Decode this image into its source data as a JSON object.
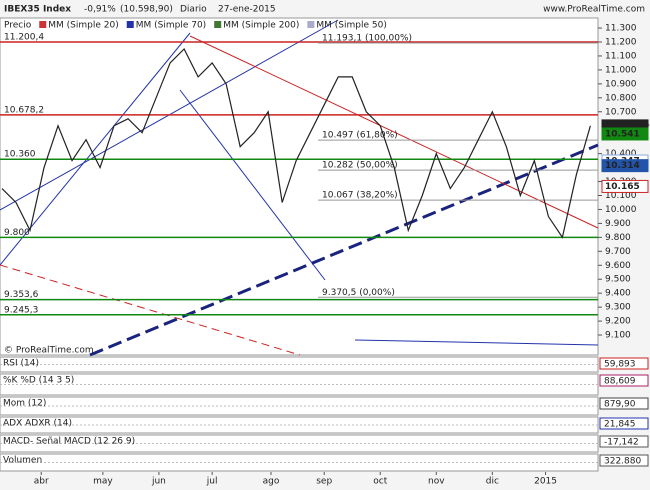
{
  "header": {
    "symbol": "IBEX35 Index",
    "change": "-0,91%",
    "price": "(10.598,90)",
    "period": "Diario",
    "date": "27-ene-2015",
    "site": "www.ProRealTime.com"
  },
  "chart_data": {
    "type": "line",
    "legend": [
      "Precio",
      "MM (Simple 20)",
      "MM (Simple 70)",
      "MM (Simple 200)",
      "MM (Simple 50)"
    ],
    "legend_colors": [
      "#777777",
      "#cc3333",
      "#2233aa",
      "#447733",
      "#aaaacc"
    ],
    "x": [
      0,
      5,
      10,
      15,
      20,
      25,
      30,
      35,
      40,
      45,
      50,
      55,
      60,
      65,
      70,
      75,
      80,
      85,
      90,
      95,
      100,
      105,
      110,
      115,
      120,
      125,
      130,
      135,
      140,
      145,
      150,
      155,
      160,
      165,
      170,
      175,
      180,
      185,
      190,
      195,
      200,
      205,
      210
    ],
    "series": [
      {
        "name": "Precio",
        "color": "#222222",
        "values": [
          10150,
          10050,
          9850,
          10300,
          10600,
          10350,
          10500,
          10300,
          10600,
          10650,
          10550,
          10800,
          11050,
          11150,
          10950,
          11050,
          10900,
          10450,
          10550,
          10700,
          10050,
          10350,
          10550,
          10750,
          10950,
          10950,
          10700,
          10600,
          10300,
          9850,
          10100,
          10400,
          10150,
          10300,
          10500,
          10700,
          10450,
          10100,
          10350,
          9950,
          9800,
          10250,
          10600
        ]
      }
    ],
    "xlim": [
      0,
      212
    ],
    "xticks": [
      {
        "value": 14,
        "label": "abr"
      },
      {
        "value": 36,
        "label": "may"
      },
      {
        "value": 56,
        "label": "jun"
      },
      {
        "value": 75,
        "label": "jul"
      },
      {
        "value": 96,
        "label": "ago"
      },
      {
        "value": 115,
        "label": "sep"
      },
      {
        "value": 135,
        "label": "oct"
      },
      {
        "value": 155,
        "label": "nov"
      },
      {
        "value": 175,
        "label": "dic"
      },
      {
        "value": 194,
        "label": "2015"
      }
    ],
    "ylim": [
      8957,
      11372
    ],
    "yticks": [
      {
        "value": 11300,
        "label": "11.300"
      },
      {
        "value": 11200,
        "label": "11.200"
      },
      {
        "value": 11100,
        "label": "11.100"
      },
      {
        "value": 11000,
        "label": "11.000"
      },
      {
        "value": 10900,
        "label": "10.900"
      },
      {
        "value": 10800,
        "label": "10.800"
      },
      {
        "value": 10700,
        "label": "10.700"
      },
      {
        "value": 10400,
        "label": "10.400"
      },
      {
        "value": 10200,
        "label": "10.200"
      },
      {
        "value": 10100,
        "label": "10.100"
      },
      {
        "value": 10000,
        "label": "10.000"
      },
      {
        "value": 9900,
        "label": "9.900"
      },
      {
        "value": 9800,
        "label": "9.800"
      },
      {
        "value": 9700,
        "label": "9.700"
      },
      {
        "value": 9600,
        "label": "9.600"
      },
      {
        "value": 9500,
        "label": "9.500"
      },
      {
        "value": 9400,
        "label": "9.400"
      },
      {
        "value": 9300,
        "label": "9.300"
      },
      {
        "value": 9200,
        "label": "9.200"
      },
      {
        "value": 9100,
        "label": "9.100"
      }
    ],
    "levels": [
      {
        "value": 11200.4,
        "label": "11.200,4",
        "color": "#cc2222"
      },
      {
        "value": 10678.2,
        "label": "10.678,2",
        "color": "#cc2222"
      },
      {
        "value": 10360,
        "label": "10.360",
        "color": "#118811"
      },
      {
        "value": 9800,
        "label": "9.800",
        "color": "#118811"
      },
      {
        "value": 9353.6,
        "label": "9.353,6",
        "color": "#118811"
      },
      {
        "value": 9245.3,
        "label": "9.245,3",
        "color": "#118811"
      }
    ],
    "fibonacci": [
      {
        "value": 11193.1,
        "label": "11.193,1 (100,00%)"
      },
      {
        "value": 10497,
        "label": "10.497 (61,80%)"
      },
      {
        "value": 10282,
        "label": "10.282 (50,00%)"
      },
      {
        "value": 10067,
        "label": "10.067 (38,20%)"
      },
      {
        "value": 9370.5,
        "label": "9.370,5 (0,00%)"
      }
    ],
    "price_labels": [
      {
        "value": 10598.9,
        "label": "10.598,90",
        "color": "#222222"
      },
      {
        "value": 10541,
        "label": "10.541",
        "color": "#118811"
      },
      {
        "value": 10347,
        "label": "10.347",
        "color": "#88aadd"
      },
      {
        "value": 10314,
        "label": "10.314",
        "color": "#2255aa"
      },
      {
        "value": 10165,
        "label": "10.165",
        "color": "#cc2222"
      }
    ],
    "copyright": "© ProRealTime.com"
  },
  "indicators": [
    {
      "name": "RSI (14)",
      "value": "59,893"
    },
    {
      "name": "%K %D (14 3 5)",
      "value": "88,609"
    },
    {
      "name": "Mom (12)",
      "value": "879,90"
    },
    {
      "name": "ADX ADXR (14)",
      "value": "21,845"
    },
    {
      "name": "MACD- Señal MACD (12 26 9)",
      "value": "-17,142"
    },
    {
      "name": "Volumen",
      "value": "322.880"
    }
  ]
}
